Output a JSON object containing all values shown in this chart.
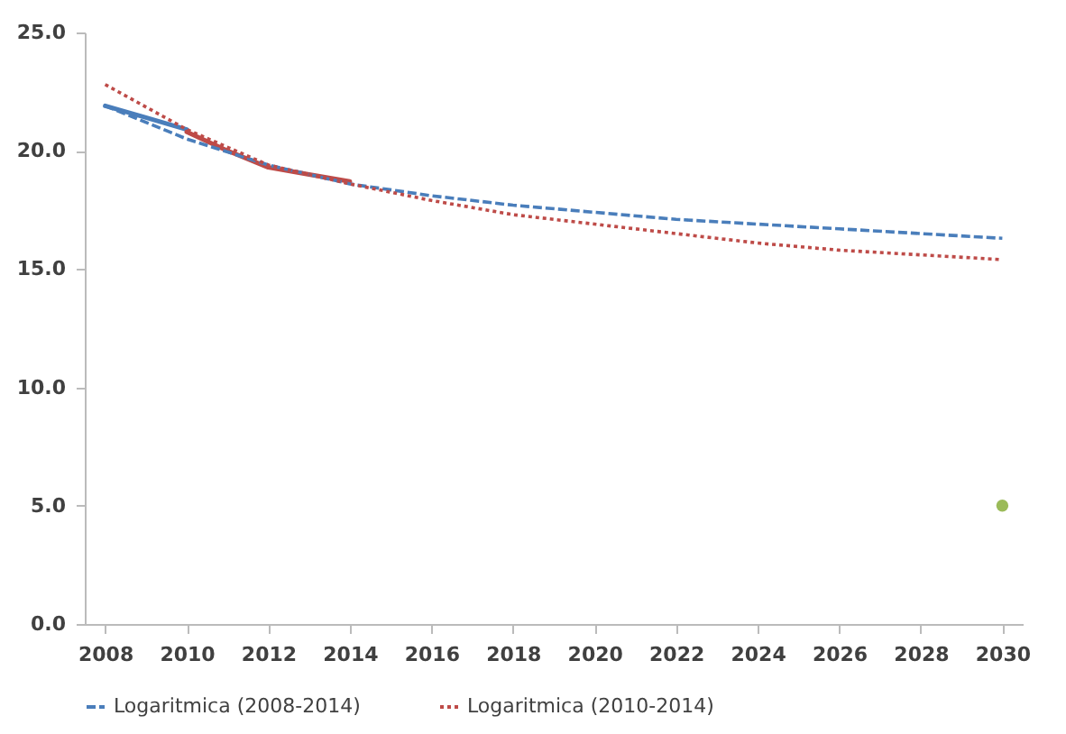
{
  "chart_data": {
    "type": "line",
    "xlim": [
      2007.5,
      2030.5
    ],
    "xticks": [
      2008,
      2010,
      2012,
      2014,
      2016,
      2018,
      2020,
      2022,
      2024,
      2026,
      2028,
      2030
    ],
    "ylim": [
      0,
      25
    ],
    "yticks": [
      {
        "value": 0,
        "label": "0.0"
      },
      {
        "value": 5,
        "label": "5.0"
      },
      {
        "value": 10,
        "label": "10.0"
      },
      {
        "value": 15,
        "label": "15.0"
      },
      {
        "value": 20,
        "label": "20.0"
      },
      {
        "value": 25,
        "label": "25.0"
      }
    ],
    "grid": false,
    "legend": "bottom",
    "series": [
      {
        "color": "#4a7ebb",
        "line_style": "solid",
        "x": [
          2008,
          2009,
          2010
        ],
        "values": [
          21.9,
          21.4,
          20.9
        ]
      },
      {
        "color": "#be4b48",
        "line_style": "solid",
        "x": [
          2010,
          2011,
          2012,
          2013,
          2014
        ],
        "values": [
          20.8,
          20.0,
          19.3,
          19.0,
          18.7
        ]
      },
      {
        "name": "Logaritmica (2008-2014)",
        "color": "#4a7ebb",
        "line_style": "dashed",
        "x": [
          2008,
          2010,
          2012,
          2014,
          2016,
          2018,
          2020,
          2022,
          2024,
          2026,
          2028,
          2030
        ],
        "values": [
          21.9,
          20.5,
          19.4,
          18.6,
          18.1,
          17.7,
          17.4,
          17.1,
          16.9,
          16.7,
          16.5,
          16.3
        ]
      },
      {
        "name": "Logaritmica (2010-2014)",
        "color": "#be4b48",
        "line_style": "dotted",
        "x": [
          2008,
          2010,
          2012,
          2014,
          2016,
          2018,
          2020,
          2022,
          2024,
          2026,
          2028,
          2030
        ],
        "values": [
          22.8,
          20.9,
          19.4,
          18.6,
          17.9,
          17.3,
          16.9,
          16.5,
          16.1,
          15.8,
          15.6,
          15.4
        ]
      },
      {
        "type": "scatter",
        "marker": "circle",
        "color": "#9bbb59",
        "x": [
          2030
        ],
        "values": [
          5.0
        ]
      }
    ]
  }
}
